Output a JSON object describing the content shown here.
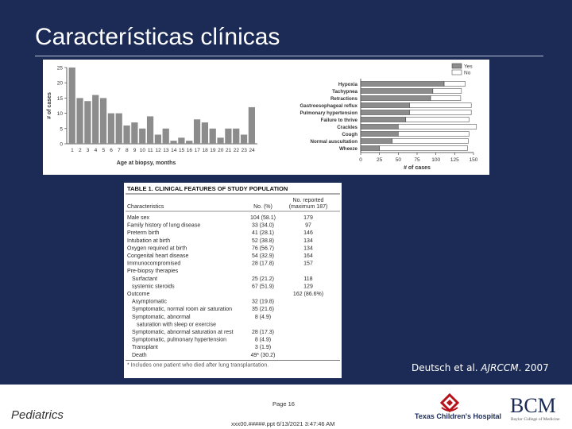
{
  "slide": {
    "title": "Características clínicas",
    "citation_author": "Deutsch et al. ",
    "citation_journal": "AJRCCM",
    "citation_year": ". 2007",
    "footer_left": "Pediatrics",
    "footer_page": "Page 16",
    "footer_file": "xxx00.#####.ppt  6/13/2021 3:47:46 AM",
    "logo_tch": "Texas Children's Hospital",
    "logo_bcm": "BCM",
    "logo_bcm_sub": "Baylor College of Medicine"
  },
  "chart_data": [
    {
      "type": "bar",
      "categories": [
        "1",
        "2",
        "3",
        "4",
        "5",
        "6",
        "7",
        "8",
        "9",
        "10",
        "11",
        "12",
        "13",
        "14",
        "15",
        "16",
        "17",
        "18",
        "19",
        "20",
        "21",
        "22",
        "23",
        "24"
      ],
      "values": [
        25,
        15,
        14,
        16,
        15,
        10,
        10,
        6,
        7,
        5,
        9,
        3,
        5,
        1,
        2,
        1,
        8,
        7,
        5,
        2,
        5,
        5,
        3,
        12
      ],
      "xlabel": "Age at biopsy, months",
      "ylabel": "# of cases",
      "ylim": [
        0,
        25
      ],
      "yticks": [
        0,
        5,
        10,
        15,
        20,
        25
      ],
      "color": "#8c8c8c"
    },
    {
      "type": "bar",
      "orientation": "horizontal",
      "stacked": true,
      "categories": [
        "Hypoxia",
        "Tachypnea",
        "Retractions",
        "Gastroesophageal reflux",
        "Pulmonary hypertension",
        "Failure to thrive",
        "Crackles",
        "Cough",
        "Normal auscultation",
        "Wheeze"
      ],
      "series": [
        {
          "name": "Yes",
          "color": "#8c8c8c",
          "values": [
            111,
            96,
            93,
            65,
            65,
            60,
            50,
            50,
            42,
            25
          ]
        },
        {
          "name": "No",
          "color": "#ffffff",
          "values": [
            28,
            38,
            40,
            82,
            82,
            84,
            104,
            94,
            101,
            117
          ]
        }
      ],
      "xlabel": "# of cases",
      "xlim": [
        0,
        150
      ],
      "xticks": [
        0,
        25,
        50,
        75,
        100,
        125,
        150
      ],
      "legend": "top-right"
    }
  ],
  "table": {
    "title": "TABLE 1. CLINICAL FEATURES OF STUDY POPULATION",
    "col1": "Characteristics",
    "col2": "No. (%)",
    "col3_line1": "No. reported",
    "col3_line2": "(maximum 187)",
    "rows": [
      {
        "label": "Male sex",
        "value": "104 (58.1)",
        "reported": "179"
      },
      {
        "label": "Family history of lung disease",
        "value": "33 (34.0)",
        "reported": "97"
      },
      {
        "label": "Preterm birth",
        "value": "41 (28.1)",
        "reported": "146"
      },
      {
        "label": "Intubation at birth",
        "value": "52 (38.8)",
        "reported": "134"
      },
      {
        "label": "Oxygen required at birth",
        "value": "76 (56.7)",
        "reported": "134"
      },
      {
        "label": "Congenital heart disease",
        "value": "54 (32.9)",
        "reported": "164"
      },
      {
        "label": "Immunocompromised",
        "value": "28 (17.8)",
        "reported": "157"
      },
      {
        "label": "Pre-biopsy therapies",
        "value": "",
        "reported": ""
      },
      {
        "label": "Surfactant",
        "value": "25 (21.2)",
        "reported": "118",
        "indent": true
      },
      {
        "label": "systemic steroids",
        "value": "67 (51.9)",
        "reported": "129",
        "indent": true
      },
      {
        "label": "Outcome",
        "value": "",
        "reported": "162 (86.6%)"
      },
      {
        "label": "Asymptomatic",
        "value": "32 (19.8)",
        "reported": "",
        "indent": true
      },
      {
        "label": "Symptomatic, normal room air saturation",
        "value": "35 (21.6)",
        "reported": "",
        "indent": true
      },
      {
        "label": "Symptomatic, abnormal",
        "value": "8 (4.9)",
        "reported": "",
        "indent": true
      },
      {
        "label": "saturation with sleep or exercise",
        "value": "",
        "reported": "",
        "indent2": true
      },
      {
        "label": "Symptomatic, abnormal saturation at rest",
        "value": "28 (17.3)",
        "reported": "",
        "indent": true
      },
      {
        "label": "Symptomatic, pulmonary hypertension",
        "value": "8 (4.9)",
        "reported": "",
        "indent": true
      },
      {
        "label": "Transplant",
        "value": "3 (1.9)",
        "reported": "",
        "indent": true
      },
      {
        "label": "Death",
        "value": "49* (30.2)",
        "reported": "",
        "indent": true
      }
    ],
    "footnote": "* Includes one patient who died after lung transplantation."
  }
}
